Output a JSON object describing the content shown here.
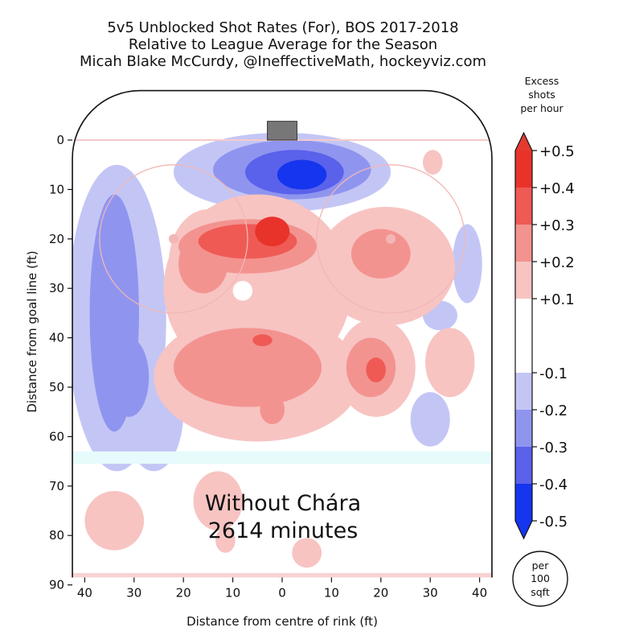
{
  "title_lines": [
    "5v5 Unblocked Shot Rates (For), BOS 2017-2018",
    "Relative to League Average for the Season",
    "Micah Blake McCurdy, @IneffectiveMath, hockeyviz.com"
  ],
  "annotation": {
    "line1": "Without Chára",
    "line2": "2614 minutes"
  },
  "area_note": [
    "per",
    "100",
    "sqft"
  ],
  "colors": {
    "pos5": "#e8332b",
    "pos4": "#ef5a55",
    "pos3": "#f39390",
    "pos2": "#f7c4c2",
    "neg2": "#c3c6f5",
    "neg3": "#8f95ef",
    "neg4": "#5a61ea",
    "neg5": "#1535ee",
    "faceoff_circle": "#f2b6b6",
    "goal": "#777777",
    "blue_line": "#e6fbfb"
  },
  "chart_data": {
    "type": "heatmap",
    "title": "5v5 Unblocked Shot Rates (For), BOS 2017-2018",
    "subtitle": "Relative to League Average for the Season",
    "xlabel": "Distance from centre of rink (ft)",
    "ylabel": "Distance from goal line (ft)",
    "xlim": [
      -42.5,
      42.5
    ],
    "ylim": [
      -3,
      90
    ],
    "x_ticks": [
      -40,
      -30,
      -20,
      -10,
      0,
      10,
      20,
      30,
      40
    ],
    "x_tick_labels": [
      "40",
      "30",
      "20",
      "10",
      "0",
      "10",
      "20",
      "30",
      "40"
    ],
    "y_ticks": [
      0,
      10,
      20,
      30,
      40,
      50,
      60,
      70,
      80,
      90
    ],
    "y_tick_labels": [
      "0",
      "10",
      "20",
      "30",
      "40",
      "50",
      "60",
      "70",
      "80",
      "90"
    ],
    "colorbar": {
      "label": [
        "Excess",
        "shots",
        "per hour"
      ],
      "range": [
        -0.5,
        0.5
      ],
      "tick_labels": [
        "+0.5",
        "+0.4",
        "+0.3",
        "+0.2",
        "+0.1",
        "-0.1",
        "-0.2",
        "-0.3",
        "-0.4",
        "-0.5"
      ],
      "tick_values": [
        0.5,
        0.4,
        0.3,
        0.2,
        0.1,
        -0.1,
        -0.2,
        -0.3,
        -0.4,
        -0.5
      ]
    },
    "regions": [
      {
        "level": "neg2",
        "x": 0,
        "y": 6.5,
        "rx": 22,
        "ry": 8
      },
      {
        "level": "neg3",
        "x": 2,
        "y": 6,
        "rx": 16,
        "ry": 6
      },
      {
        "level": "neg4",
        "x": 2.5,
        "y": 6.5,
        "rx": 10,
        "ry": 4.5
      },
      {
        "level": "neg5",
        "x": 4,
        "y": 7,
        "rx": 5,
        "ry": 3
      },
      {
        "level": "neg2",
        "x": -33.5,
        "y": 36,
        "rx": 10,
        "ry": 31
      },
      {
        "level": "neg2",
        "x": -26,
        "y": 55,
        "rx": 6,
        "ry": 12
      },
      {
        "level": "neg3",
        "x": -34,
        "y": 35,
        "rx": 5,
        "ry": 24
      },
      {
        "level": "neg3",
        "x": -31,
        "y": 48,
        "rx": 4,
        "ry": 8
      },
      {
        "level": "neg2",
        "x": 37.5,
        "y": 25,
        "rx": 3,
        "ry": 8
      },
      {
        "level": "neg2",
        "x": 32,
        "y": 35.5,
        "rx": 3.5,
        "ry": 3
      },
      {
        "level": "neg2",
        "x": 30,
        "y": 56.5,
        "rx": 4,
        "ry": 5.5
      },
      {
        "level": "pos2",
        "x": -5,
        "y": 30,
        "rx": 19,
        "ry": 19
      },
      {
        "level": "pos2",
        "x": -5,
        "y": 48,
        "rx": 21,
        "ry": 13
      },
      {
        "level": "pos2",
        "x": -15,
        "y": 25,
        "rx": 8,
        "ry": 11
      },
      {
        "level": "pos2",
        "x": 21,
        "y": 25.5,
        "rx": 14,
        "ry": 12
      },
      {
        "level": "pos2",
        "x": 19,
        "y": 46,
        "rx": 8,
        "ry": 10
      },
      {
        "level": "pos2",
        "x": 34,
        "y": 45,
        "rx": 5,
        "ry": 7
      },
      {
        "level": "pos2",
        "x": 30.5,
        "y": 4.5,
        "rx": 2,
        "ry": 2.5
      },
      {
        "level": "pos2",
        "x": -34,
        "y": 77,
        "rx": 6,
        "ry": 6
      },
      {
        "level": "pos2",
        "x": -13,
        "y": 73,
        "rx": 5,
        "ry": 6
      },
      {
        "level": "pos2",
        "x": -11.5,
        "y": 81,
        "rx": 2,
        "ry": 2.5
      },
      {
        "level": "pos2",
        "x": 5,
        "y": 83.5,
        "rx": 3,
        "ry": 3
      },
      {
        "level": "pos3",
        "x": -7,
        "y": 21.5,
        "rx": 14,
        "ry": 5.5
      },
      {
        "level": "pos3",
        "x": -16,
        "y": 25,
        "rx": 5,
        "ry": 6
      },
      {
        "level": "pos3",
        "x": -7,
        "y": 46,
        "rx": 15,
        "ry": 8
      },
      {
        "level": "pos3",
        "x": 18,
        "y": 46,
        "rx": 5,
        "ry": 6
      },
      {
        "level": "pos3",
        "x": 20,
        "y": 23,
        "rx": 6,
        "ry": 5
      },
      {
        "level": "pos3",
        "x": -2,
        "y": 54.5,
        "rx": 2.5,
        "ry": 3
      },
      {
        "level": "pos4",
        "x": -7,
        "y": 20.5,
        "rx": 10,
        "ry": 3.5
      },
      {
        "level": "pos4",
        "x": -4,
        "y": 40.5,
        "rx": 2,
        "ry": 1.2
      },
      {
        "level": "pos4",
        "x": 19,
        "y": 46.5,
        "rx": 2,
        "ry": 2.5
      },
      {
        "level": "pos5",
        "x": -2,
        "y": 18.5,
        "rx": 3.5,
        "ry": 3
      },
      {
        "level": "white",
        "x": -8,
        "y": 30.5,
        "rx": 2,
        "ry": 2
      }
    ],
    "faceoff_circles": [
      {
        "x": -22,
        "y": 20,
        "r": 15
      },
      {
        "x": 22,
        "y": 20,
        "r": 15
      }
    ]
  }
}
